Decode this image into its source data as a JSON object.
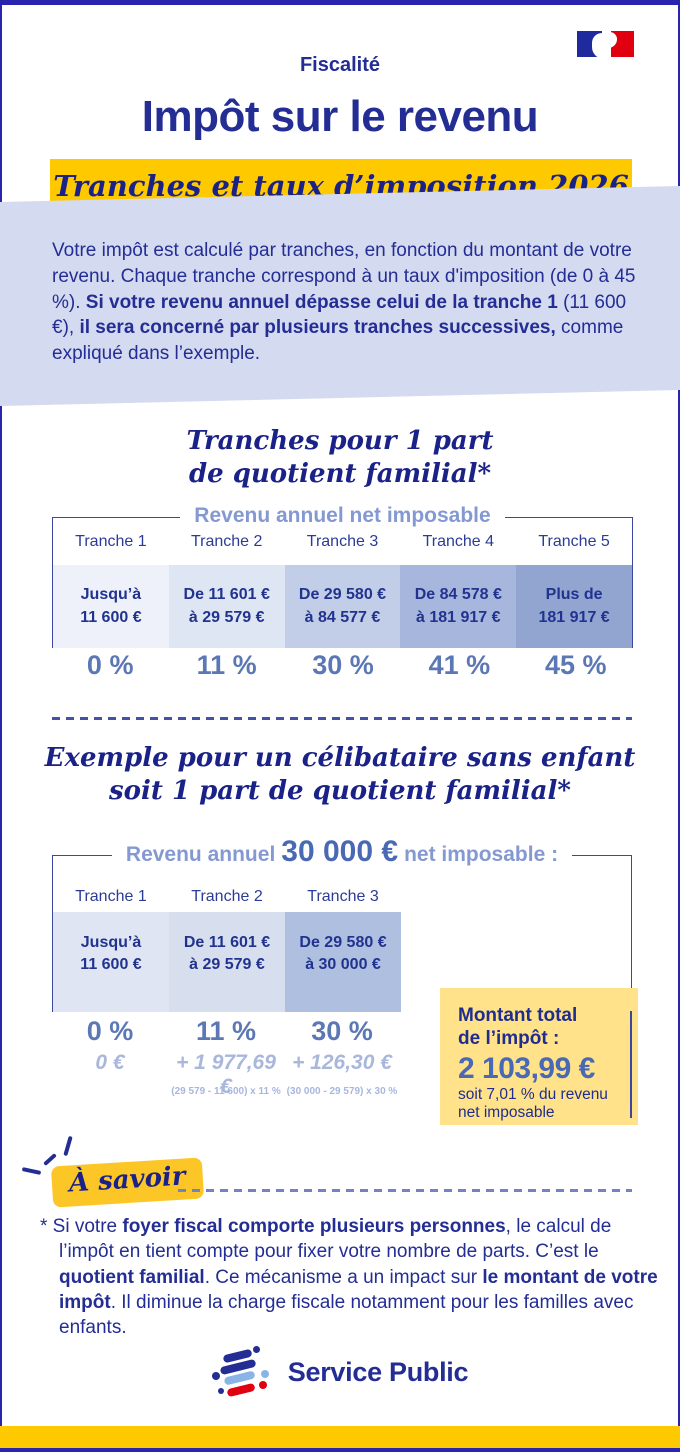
{
  "header": {
    "category": "Fiscalité",
    "title": "Impôt sur le revenu",
    "banner": "Tranches et taux d’imposition 2026"
  },
  "intro": {
    "segments": [
      {
        "t": "Votre impôt est calculé par tranches, en fonction du montant de votre revenu. Chaque tranche correspond à un taux d'imposition (de 0 à 45 %). ",
        "b": false
      },
      {
        "t": "Si votre revenu annuel dépasse celui de la tranche 1 ",
        "b": true
      },
      {
        "t": "(11 600 €), ",
        "b": false
      },
      {
        "t": "il sera concerné par plusieurs tranches successives,",
        "b": true
      },
      {
        "t": " comme expliqué dans l’exemple.",
        "b": false
      }
    ]
  },
  "section1": {
    "title": "Tranches pour 1 part\nde quotient familial*",
    "caption": "Revenu annuel net imposable",
    "columns": [
      {
        "header": "Tranche 1",
        "range": "Jusqu’à\n11 600 €",
        "rate": "0 %",
        "bg": "#eef1f9"
      },
      {
        "header": "Tranche 2",
        "range": "De 11 601 €\nà 29 579 €",
        "rate": "11 %",
        "bg": "#dee5f3"
      },
      {
        "header": "Tranche 3",
        "range": "De 29 580 €\nà 84 577 €",
        "rate": "30 %",
        "bg": "#c2cde7"
      },
      {
        "header": "Tranche 4",
        "range": "De 84 578 €\nà 181 917 €",
        "rate": "41 %",
        "bg": "#a7b6dc"
      },
      {
        "header": "Tranche 5",
        "range": "Plus de\n181 917 €",
        "rate": "45 %",
        "bg": "#92a4d0"
      }
    ]
  },
  "example": {
    "title": "Exemple pour un célibataire sans enfant\nsoit 1 part de quotient familial*",
    "caption_prefix": "Revenu annuel",
    "caption_amount": "30 000 €",
    "caption_suffix": "net imposable :",
    "columns": [
      {
        "header": "Tranche 1",
        "range": "Jusqu’à\n11 600 €",
        "rate": "0 %",
        "amount": "0 €",
        "formula": "",
        "bg": "#dfe5f2"
      },
      {
        "header": "Tranche 2",
        "range": "De 11 601 €\nà 29 579 €",
        "rate": "11 %",
        "amount": "+ 1 977,69 €",
        "formula": "(29 579 - 11 600) x 11 %",
        "bg": "#d7dfef"
      },
      {
        "header": "Tranche 3",
        "range": "De 29 580 €\nà 30 000 €",
        "rate": "30 %",
        "amount": "+ 126,30 €",
        "formula": "(30 000 - 29 579) x 30 %",
        "bg": "#aebfe0"
      }
    ],
    "total_box": {
      "label": "Montant total\nde l’impôt :",
      "amount": "2 103,99 €",
      "note": "soit 7,01 % du revenu\nnet imposable",
      "bg": "#ffe28a"
    }
  },
  "a_savoir": {
    "badge": "À savoir",
    "badge_bg": "#fdc627"
  },
  "footnote": {
    "segments": [
      {
        "t": "* Si votre ",
        "b": false
      },
      {
        "t": "foyer fiscal comporte plusieurs personnes",
        "b": true
      },
      {
        "t": ", le calcul de l’impôt en tient compte pour fixer votre nombre de parts. C’est le ",
        "b": false
      },
      {
        "t": "quotient familial",
        "b": true
      },
      {
        "t": ". Ce mécanisme a un impact sur ",
        "b": false
      },
      {
        "t": "le montant de votre impôt",
        "b": true
      },
      {
        "t": ". Il diminue la charge fiscale notamment pour les familles avec enfants.",
        "b": false
      }
    ]
  },
  "footer": {
    "brand": "Service Public",
    "bottom_bar_bg": "#ffc900"
  },
  "colors": {
    "navy_text": "#232d94",
    "serif_navy": "#1b2287",
    "medium_blue": "#4a69b4",
    "rate_blue": "#5b77b4",
    "periwinkle_label": "#8499d2",
    "light_amount": "#a9b7dd",
    "intro_band_bg": "#d4daef",
    "banner_yellow": "#ffc900",
    "frame_border": "#3c489f",
    "page_border": "#2824ae",
    "flag_blue": "#1f2a9d",
    "flag_red": "#e1000f",
    "logo_light_blue": "#8ab4e8"
  }
}
